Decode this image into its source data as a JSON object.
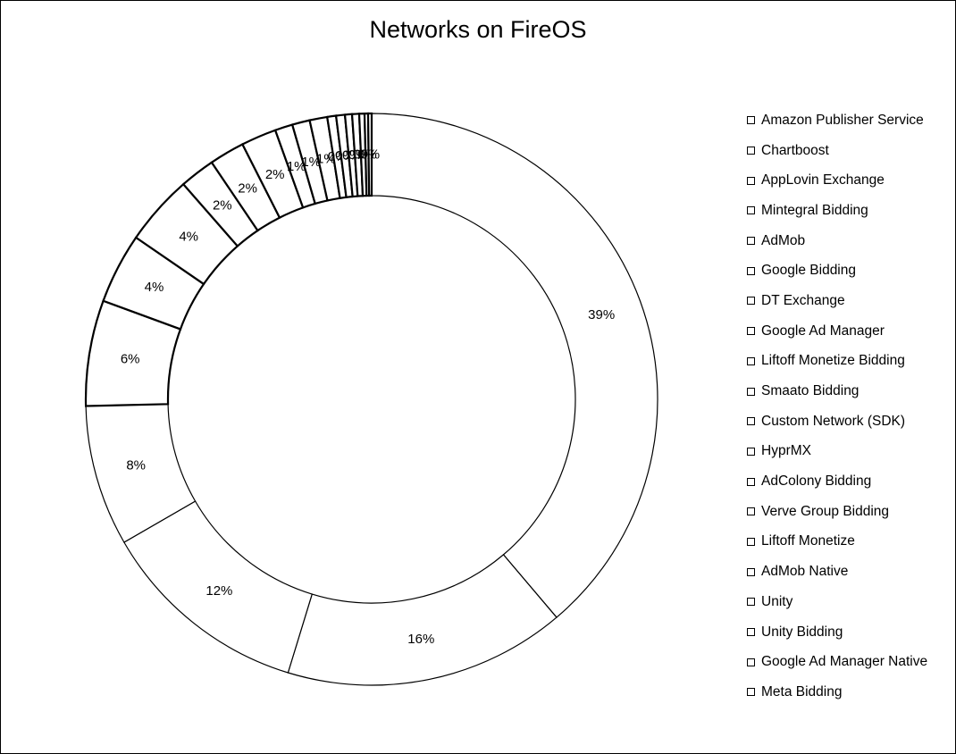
{
  "chart_data": {
    "type": "donut",
    "title": "Networks on FireOS",
    "legend_position": "right",
    "slices": [
      {
        "name": "Amazon Publisher Service",
        "value": 39,
        "label": "39%"
      },
      {
        "name": "Chartboost",
        "value": 16,
        "label": "16%"
      },
      {
        "name": "AppLovin Exchange",
        "value": 12,
        "label": "12%"
      },
      {
        "name": "Mintegral Bidding",
        "value": 8,
        "label": "8%"
      },
      {
        "name": "AdMob",
        "value": 6,
        "label": "6%"
      },
      {
        "name": "Google Bidding",
        "value": 4,
        "label": "4%"
      },
      {
        "name": "DT Exchange",
        "value": 4,
        "label": "4%"
      },
      {
        "name": "Google Ad Manager",
        "value": 2,
        "label": "2%"
      },
      {
        "name": "Liftoff Monetize Bidding",
        "value": 2,
        "label": "2%"
      },
      {
        "name": "Smaato Bidding",
        "value": 2,
        "label": "2%"
      },
      {
        "name": "Custom Network (SDK)",
        "value": 1,
        "label": "1%"
      },
      {
        "name": "HyprMX",
        "value": 1,
        "label": "1%"
      },
      {
        "name": "AdColony Bidding",
        "value": 1,
        "label": "1%"
      },
      {
        "name": "Verve Group Bidding",
        "value": 0.5,
        "label": "0%"
      },
      {
        "name": "Liftoff Monetize",
        "value": 0.5,
        "label": "0%"
      },
      {
        "name": "AdMob Native",
        "value": 0.4,
        "label": "0%"
      },
      {
        "name": "Unity",
        "value": 0.4,
        "label": "0%"
      },
      {
        "name": "Unity Bidding",
        "value": 0.3,
        "label": "0%"
      },
      {
        "name": "Google Ad Manager Native",
        "value": 0.2,
        "label": "0%"
      },
      {
        "name": "Meta Bidding",
        "value": 0.2,
        "label": "0%"
      }
    ],
    "colors": {
      "fill": "#ffffff",
      "stroke": "#000000"
    }
  }
}
